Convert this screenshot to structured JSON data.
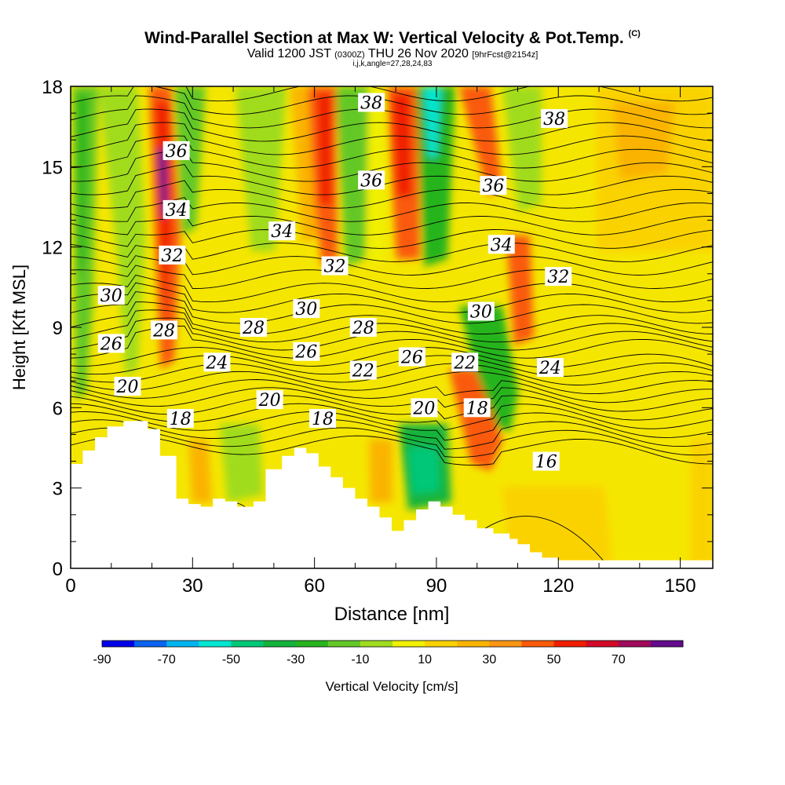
{
  "header": {
    "title": "Wind-Parallel Section at Max W: Vertical Velocity & Pot.Temp.",
    "title_mark": "(C)",
    "valid_prefix": "Valid 1200 JST",
    "valid_utc": "(0300Z)",
    "valid_date": "THU 26 Nov 2020",
    "forecast": "[9hrFcst@2154z]",
    "indices": "i,j,k,angle=27,28,24,83"
  },
  "chart_data": {
    "type": "heatmap",
    "title": "Wind-Parallel Section at Max W: Vertical Velocity & Pot.Temp.",
    "xlabel": "Distance [nm]",
    "ylabel": "Height [Kft MSL]",
    "xlim": [
      0,
      158
    ],
    "ylim": [
      0,
      18
    ],
    "xticks": [
      0,
      30,
      60,
      90,
      120,
      150
    ],
    "yticks": [
      0,
      3,
      6,
      9,
      12,
      15,
      18
    ],
    "colorbar": {
      "label": "Vertical Velocity [cm/s]",
      "levels": [
        -90,
        -80,
        -70,
        -60,
        -50,
        -40,
        -30,
        -20,
        -10,
        0,
        10,
        20,
        30,
        40,
        50,
        60,
        70,
        80
      ],
      "tick_labels": [
        "-90",
        "-70",
        "-50",
        "-30",
        "-10",
        "10",
        "30",
        "50",
        "70"
      ],
      "colors": [
        "#0000e6",
        "#0a64f0",
        "#00b4f0",
        "#00e6d2",
        "#00c878",
        "#14b43c",
        "#28b41e",
        "#64c828",
        "#a0dc1e",
        "#f0f000",
        "#fad200",
        "#fab400",
        "#fa9614",
        "#fa5a0a",
        "#f01e00",
        "#d20a28",
        "#a00a5a",
        "#640a8c"
      ]
    },
    "terrain_height_kft": [
      {
        "x": 0,
        "h": 3.9
      },
      {
        "x": 3,
        "h": 4.4
      },
      {
        "x": 6,
        "h": 4.9
      },
      {
        "x": 9,
        "h": 5.3
      },
      {
        "x": 13,
        "h": 5.5
      },
      {
        "x": 19,
        "h": 5.2
      },
      {
        "x": 22,
        "h": 4.2
      },
      {
        "x": 26,
        "h": 2.6
      },
      {
        "x": 29,
        "h": 2.4
      },
      {
        "x": 32,
        "h": 2.3
      },
      {
        "x": 35,
        "h": 2.6
      },
      {
        "x": 38,
        "h": 2.5
      },
      {
        "x": 41,
        "h": 2.3
      },
      {
        "x": 45,
        "h": 2.5
      },
      {
        "x": 48,
        "h": 3.7
      },
      {
        "x": 52,
        "h": 4.2
      },
      {
        "x": 55,
        "h": 4.5
      },
      {
        "x": 58,
        "h": 4.3
      },
      {
        "x": 61,
        "h": 3.8
      },
      {
        "x": 64,
        "h": 3.4
      },
      {
        "x": 67,
        "h": 3.0
      },
      {
        "x": 70,
        "h": 2.6
      },
      {
        "x": 73,
        "h": 2.3
      },
      {
        "x": 76,
        "h": 1.9
      },
      {
        "x": 79,
        "h": 1.4
      },
      {
        "x": 82,
        "h": 1.8
      },
      {
        "x": 85,
        "h": 2.2
      },
      {
        "x": 88,
        "h": 2.5
      },
      {
        "x": 91,
        "h": 2.3
      },
      {
        "x": 94,
        "h": 2.0
      },
      {
        "x": 97,
        "h": 1.8
      },
      {
        "x": 100,
        "h": 1.5
      },
      {
        "x": 104,
        "h": 1.3
      },
      {
        "x": 108,
        "h": 1.1
      },
      {
        "x": 110,
        "h": 0.9
      },
      {
        "x": 113,
        "h": 0.6
      },
      {
        "x": 116,
        "h": 0.4
      },
      {
        "x": 120,
        "h": 0.3
      },
      {
        "x": 130,
        "h": 0.3
      },
      {
        "x": 150,
        "h": 0.3
      },
      {
        "x": 158,
        "h": 0.3
      }
    ],
    "contour_labels": [
      {
        "text": "38",
        "x": 74,
        "y": 17.4
      },
      {
        "text": "38",
        "x": 119,
        "y": 16.8
      },
      {
        "text": "36",
        "x": 26,
        "y": 15.6
      },
      {
        "text": "36",
        "x": 74,
        "y": 14.5
      },
      {
        "text": "36",
        "x": 104,
        "y": 14.3
      },
      {
        "text": "34",
        "x": 26,
        "y": 13.4
      },
      {
        "text": "34",
        "x": 52,
        "y": 12.6
      },
      {
        "text": "34",
        "x": 106,
        "y": 12.1
      },
      {
        "text": "32",
        "x": 25,
        "y": 11.7
      },
      {
        "text": "32",
        "x": 65,
        "y": 11.3
      },
      {
        "text": "32",
        "x": 120,
        "y": 10.9
      },
      {
        "text": "30",
        "x": 10,
        "y": 10.2
      },
      {
        "text": "30",
        "x": 58,
        "y": 9.7
      },
      {
        "text": "30",
        "x": 101,
        "y": 9.6
      },
      {
        "text": "28",
        "x": 23,
        "y": 8.9
      },
      {
        "text": "28",
        "x": 45,
        "y": 9.0
      },
      {
        "text": "28",
        "x": 72,
        "y": 9.0
      },
      {
        "text": "26",
        "x": 10,
        "y": 8.4
      },
      {
        "text": "26",
        "x": 58,
        "y": 8.1
      },
      {
        "text": "26",
        "x": 84,
        "y": 7.9
      },
      {
        "text": "24",
        "x": 36,
        "y": 7.7
      },
      {
        "text": "24",
        "x": 118,
        "y": 7.5
      },
      {
        "text": "22",
        "x": 72,
        "y": 7.4
      },
      {
        "text": "22",
        "x": 97,
        "y": 7.7
      },
      {
        "text": "20",
        "x": 14,
        "y": 6.8
      },
      {
        "text": "20",
        "x": 49,
        "y": 6.3
      },
      {
        "text": "20",
        "x": 87,
        "y": 6.0
      },
      {
        "text": "18",
        "x": 27,
        "y": 5.6
      },
      {
        "text": "18",
        "x": 62,
        "y": 5.6
      },
      {
        "text": "18",
        "x": 100,
        "y": 6.0
      },
      {
        "text": "16",
        "x": 117,
        "y": 4.0
      }
    ]
  }
}
